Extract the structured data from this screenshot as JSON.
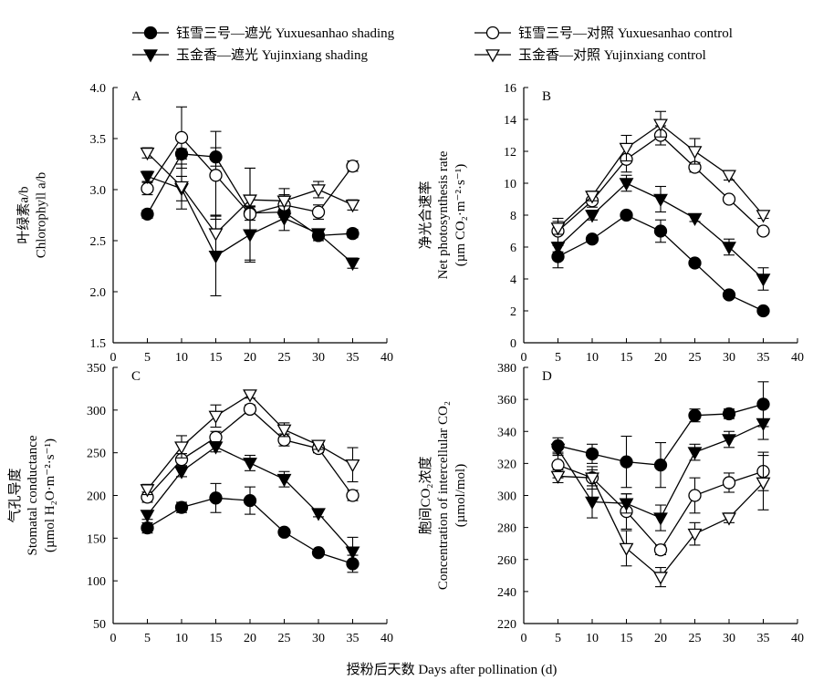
{
  "legend": {
    "items": [
      {
        "label": "钰雪三号—遮光 Yuxuesanhao shading",
        "marker": "circle-filled"
      },
      {
        "label": "钰雪三号—对照 Yuxuesanhao control",
        "marker": "circle-open"
      },
      {
        "label": "玉金香—遮光 Yujinxiang shading",
        "marker": "triangle-filled"
      },
      {
        "label": "玉金香—对照 Yujinxiang control",
        "marker": "triangle-open"
      }
    ]
  },
  "xlabel": "授粉后天数 Days after pollination (d)",
  "chart_data": [
    {
      "type": "line",
      "panel": "A",
      "ylabel_cn": "叶绿素a/b",
      "ylabel_en": "Chlorophyll a/b",
      "x": [
        5,
        10,
        15,
        20,
        25,
        30,
        35
      ],
      "xlim": [
        0,
        40
      ],
      "xticks": [
        0,
        5,
        10,
        15,
        20,
        25,
        30,
        35,
        40
      ],
      "ylim": [
        1.5,
        4.0
      ],
      "yticks": [
        "1.5",
        "2.0",
        "2.5",
        "3.0",
        "3.5",
        "4.0"
      ],
      "series": [
        {
          "name": "钰雪三号—遮光 Yuxuesanhao shading",
          "marker": "circle-filled",
          "values": [
            2.76,
            3.35,
            3.32,
            2.77,
            2.78,
            2.55,
            2.57
          ],
          "errors": [
            0.04,
            0.05,
            0.09,
            0.07,
            0.05,
            0.05,
            0.04
          ]
        },
        {
          "name": "钰雪三号—对照 Yuxuesanhao control",
          "marker": "circle-open",
          "values": [
            3.01,
            3.51,
            3.14,
            2.76,
            2.85,
            2.78,
            3.23
          ],
          "errors": [
            0.06,
            0.3,
            0.43,
            0.45,
            0.1,
            0.07,
            0.05
          ]
        },
        {
          "name": "玉金香—遮光 Yujinxiang shading",
          "marker": "triangle-filled",
          "values": [
            3.13,
            3.01,
            2.35,
            2.56,
            2.72,
            2.57,
            2.28
          ],
          "errors": [
            0.05,
            0.12,
            0.39,
            0.27,
            0.12,
            0.04,
            0.05
          ]
        },
        {
          "name": "玉金香—对照 Yujinxiang control",
          "marker": "triangle-open",
          "values": [
            3.36,
            3.03,
            2.57,
            2.9,
            2.89,
            3.0,
            2.85
          ],
          "errors": [
            0.05,
            0.22,
            0.18,
            0.31,
            0.12,
            0.08,
            0.05
          ]
        }
      ]
    },
    {
      "type": "line",
      "panel": "B",
      "ylabel_cn": "净光合速率",
      "ylabel_en": "Net photosynthesis rate",
      "yunit": "(µm CO₂·m⁻²·s⁻¹)",
      "x": [
        5,
        10,
        15,
        20,
        25,
        30,
        35
      ],
      "xlim": [
        0,
        40
      ],
      "xticks": [
        0,
        5,
        10,
        15,
        20,
        25,
        30,
        35,
        40
      ],
      "ylim": [
        0,
        16
      ],
      "yticks": [
        "0",
        "2",
        "4",
        "6",
        "8",
        "10",
        "12",
        "14",
        "16"
      ],
      "series": [
        {
          "name": "钰雪三号—遮光 Yuxuesanhao shading",
          "marker": "circle-filled",
          "values": [
            5.4,
            6.5,
            8.0,
            7.0,
            5.0,
            3.0,
            2.0
          ],
          "errors": [
            0.7,
            0.2,
            0.2,
            0.7,
            0.1,
            0.2,
            0.1
          ]
        },
        {
          "name": "钰雪三号—对照 Yuxuesanhao control",
          "marker": "circle-open",
          "values": [
            7.0,
            8.9,
            11.5,
            13.0,
            11.0,
            9.0,
            7.0
          ],
          "errors": [
            0.8,
            0.4,
            0.8,
            0.6,
            0.3,
            0.2,
            0.2
          ]
        },
        {
          "name": "玉金香—遮光 Yujinxiang shading",
          "marker": "triangle-filled",
          "values": [
            6.0,
            8.0,
            10.0,
            9.0,
            7.8,
            6.0,
            4.0
          ],
          "errors": [
            0.3,
            0.3,
            0.5,
            0.8,
            0.2,
            0.5,
            0.7
          ]
        },
        {
          "name": "玉金香—对照 Yujinxiang control",
          "marker": "triangle-open",
          "values": [
            7.2,
            9.2,
            12.2,
            13.7,
            12.0,
            10.5,
            8.0
          ],
          "errors": [
            0.4,
            0.3,
            0.8,
            0.8,
            0.8,
            0.3,
            0.2
          ]
        }
      ]
    },
    {
      "type": "line",
      "panel": "C",
      "ylabel_cn": "气孔导度",
      "ylabel_en": "Stomatal conductance",
      "yunit": "(µmol H₂O·m⁻²·s⁻¹)",
      "x": [
        5,
        10,
        15,
        20,
        25,
        30,
        35
      ],
      "xlim": [
        0,
        40
      ],
      "xticks": [
        0,
        5,
        10,
        15,
        20,
        25,
        30,
        35,
        40
      ],
      "ylim": [
        50,
        350
      ],
      "yticks": [
        "50",
        "100",
        "150",
        "200",
        "250",
        "300",
        "350"
      ],
      "series": [
        {
          "name": "钰雪三号—遮光 Yuxuesanhao shading",
          "marker": "circle-filled",
          "values": [
            162,
            186,
            197,
            194,
            157,
            133,
            120
          ],
          "errors": [
            6,
            6,
            17,
            16,
            4,
            3,
            10
          ]
        },
        {
          "name": "钰雪三号—对照 Yuxuesanhao control",
          "marker": "circle-open",
          "values": [
            198,
            242,
            268,
            301,
            265,
            255,
            200
          ],
          "errors": [
            6,
            7,
            7,
            5,
            7,
            5,
            6
          ]
        },
        {
          "name": "玉金香—遮光 Yujinxiang shading",
          "marker": "triangle-filled",
          "values": [
            177,
            228,
            257,
            238,
            219,
            179,
            134
          ],
          "errors": [
            5,
            6,
            6,
            9,
            9,
            4,
            17
          ]
        },
        {
          "name": "玉金香—对照 Yujinxiang control",
          "marker": "triangle-open",
          "values": [
            207,
            257,
            293,
            318,
            277,
            259,
            236
          ],
          "errors": [
            6,
            13,
            13,
            4,
            8,
            5,
            20
          ]
        }
      ]
    },
    {
      "type": "line",
      "panel": "D",
      "ylabel_cn": "胞间CO₂浓度",
      "ylabel_en": "Concentration of intercellular CO₂",
      "yunit": "(µmol/mol)",
      "x": [
        5,
        10,
        15,
        20,
        25,
        30,
        35
      ],
      "xlim": [
        0,
        40
      ],
      "xticks": [
        0,
        5,
        10,
        15,
        20,
        25,
        30,
        35,
        40
      ],
      "ylim": [
        220,
        380
      ],
      "yticks": [
        "220",
        "240",
        "260",
        "280",
        "300",
        "320",
        "340",
        "360",
        "380"
      ],
      "series": [
        {
          "name": "钰雪三号—遮光 Yuxuesanhao shading",
          "marker": "circle-filled",
          "values": [
            331,
            326,
            321,
            319,
            350,
            351,
            357
          ],
          "errors": [
            5,
            6,
            16,
            14,
            4,
            3,
            14
          ]
        },
        {
          "name": "钰雪三号—对照 Yuxuesanhao control",
          "marker": "circle-open",
          "values": [
            319,
            311,
            290,
            266,
            300,
            308,
            315
          ],
          "errors": [
            8,
            7,
            11,
            3,
            11,
            6,
            12
          ]
        },
        {
          "name": "玉金香—遮光 Yujinxiang shading",
          "marker": "triangle-filled",
          "values": [
            329,
            296,
            295,
            286,
            327,
            335,
            345
          ],
          "errors": [
            4,
            10,
            6,
            8,
            5,
            5,
            10
          ]
        },
        {
          "name": "玉金香—对照 Yujinxiang control",
          "marker": "triangle-open",
          "values": [
            312,
            311,
            267,
            249,
            276,
            286,
            308
          ],
          "errors": [
            4,
            5,
            11,
            6,
            7,
            3,
            17
          ]
        }
      ]
    }
  ]
}
